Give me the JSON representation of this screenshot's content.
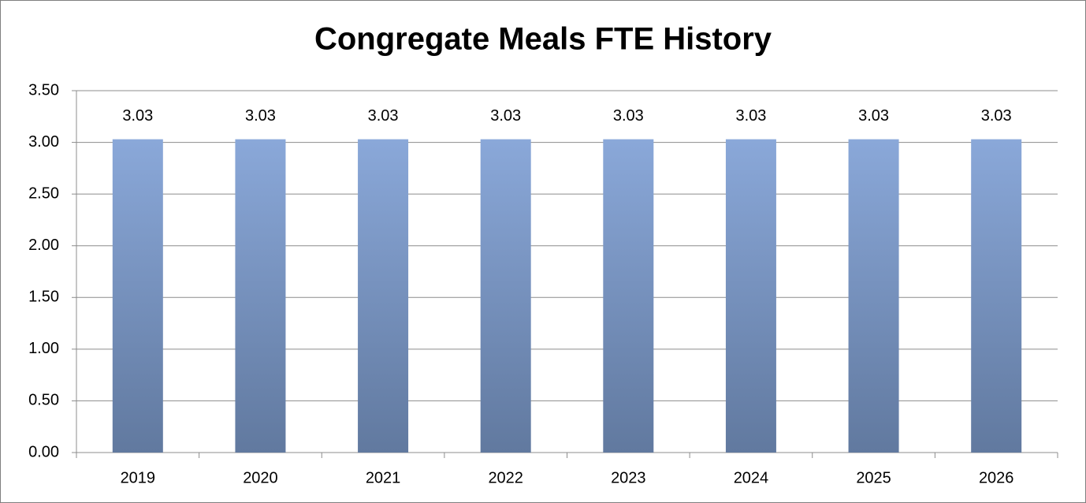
{
  "chart_data": {
    "type": "bar",
    "title": "Congregate Meals FTE History",
    "categories": [
      "2019",
      "2020",
      "2021",
      "2022",
      "2023",
      "2024",
      "2025",
      "2026"
    ],
    "values": [
      3.03,
      3.03,
      3.03,
      3.03,
      3.03,
      3.03,
      3.03,
      3.03
    ],
    "color": "#8aa8d9",
    "ylim": [
      0,
      3.5
    ],
    "yticks": [
      {
        "value": 0,
        "label": "0.00"
      },
      {
        "value": 0.5,
        "label": "0.50"
      },
      {
        "value": 1,
        "label": "1.00"
      },
      {
        "value": 1.5,
        "label": "1.50"
      },
      {
        "value": 2,
        "label": "2.00"
      },
      {
        "value": 2.5,
        "label": "2.50"
      },
      {
        "value": 3,
        "label": "3.00"
      },
      {
        "value": 3.5,
        "label": "3.50"
      }
    ],
    "grid": true
  }
}
